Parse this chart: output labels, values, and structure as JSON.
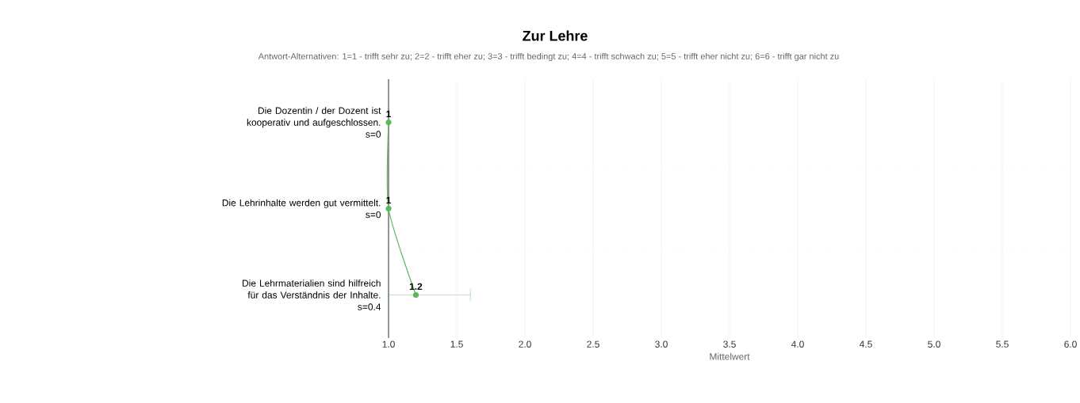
{
  "chart_data": {
    "type": "line",
    "orientation": "horizontal",
    "title": "Zur Lehre",
    "subtitle": "Antwort-Alternativen: 1=1 - trifft sehr zu; 2=2 - trifft eher zu; 3=3 - trifft bedingt zu; 4=4 - trifft schwach zu; 5=5 - trifft eher nicht zu; 6=6 - trifft gar nicht zu",
    "categories": [
      "Die Dozentin / der Dozent ist kooperativ und aufgeschlossen.",
      "Die Lehrinhalte werden gut vermittelt.",
      "Die Lehrmaterialien sind hilfreich für das Verständnis der Inhalte."
    ],
    "annotations": [
      "s=0",
      "s=0",
      "s=0.4"
    ],
    "values": [
      1,
      1,
      1.2
    ],
    "errors": [
      null,
      null,
      [
        1.0,
        1.6
      ]
    ],
    "color": "#5cb85c",
    "marker": "circle",
    "data_labels": true,
    "grid": true,
    "xlabel": "Mittelwert",
    "xlim": [
      1.0,
      6.0
    ],
    "xticks": [
      {
        "value": 1,
        "label": "1.0"
      },
      {
        "value": 1.5,
        "label": "1.5"
      },
      {
        "value": 2,
        "label": "2.0"
      },
      {
        "value": 2.5,
        "label": "2.5"
      },
      {
        "value": 3,
        "label": "3.0"
      },
      {
        "value": 3.5,
        "label": "3.5"
      },
      {
        "value": 4,
        "label": "4.0"
      },
      {
        "value": 4.5,
        "label": "4.5"
      },
      {
        "value": 5,
        "label": "5.0"
      },
      {
        "value": 5.5,
        "label": "5.5"
      },
      {
        "value": 6,
        "label": "6.0"
      }
    ]
  }
}
